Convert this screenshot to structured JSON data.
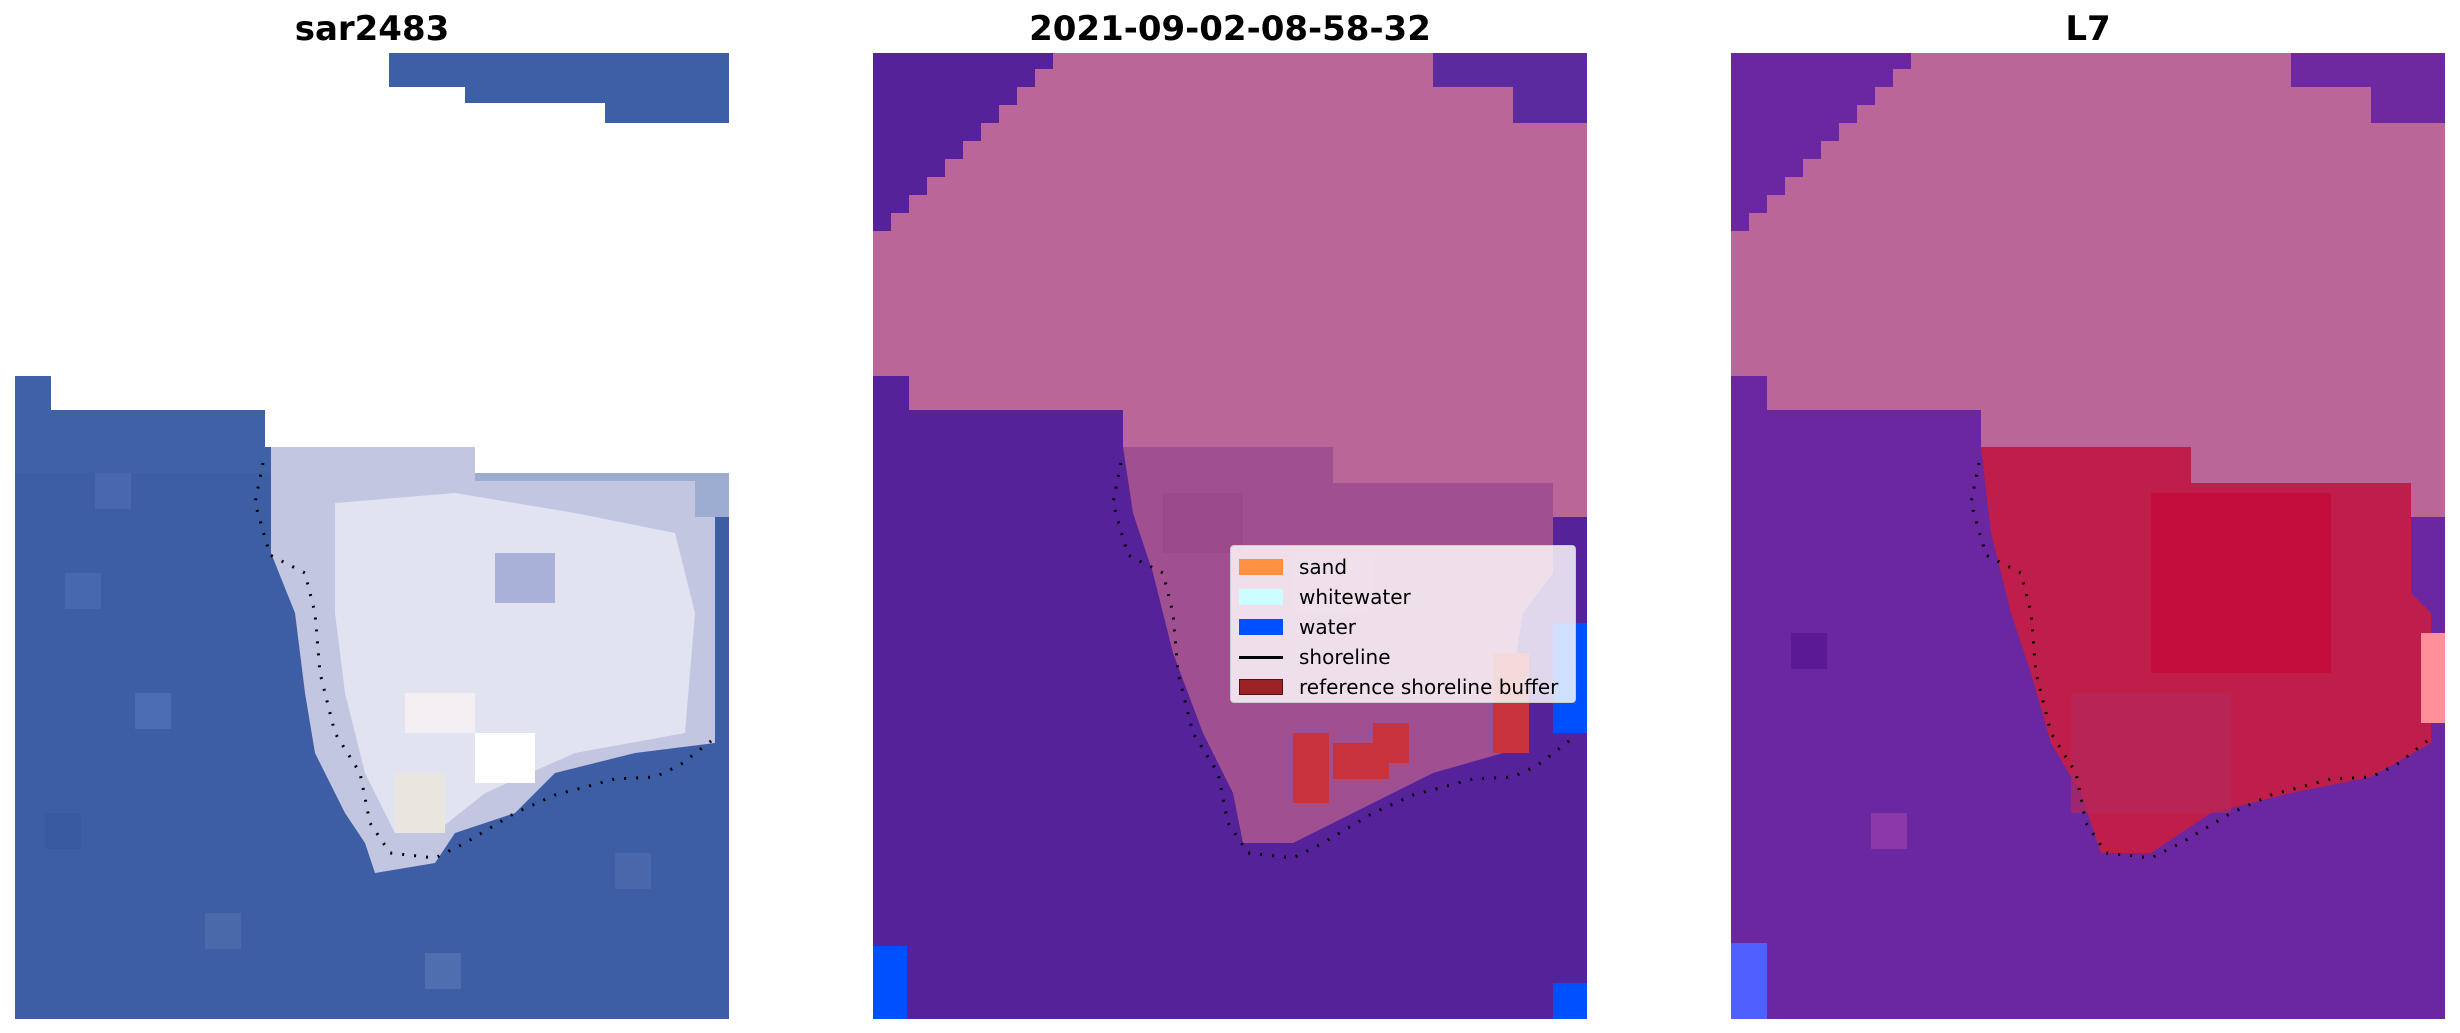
{
  "panels": [
    {
      "title": "sar2483"
    },
    {
      "title": "2021-09-02-08-58-32"
    },
    {
      "title": "L7"
    }
  ],
  "legend": {
    "items": [
      {
        "label": "sand",
        "color": "#ff9042",
        "kind": "patch"
      },
      {
        "label": "whitewater",
        "color": "#ccfdff",
        "kind": "patch"
      },
      {
        "label": "water",
        "color": "#0050ff",
        "kind": "patch"
      },
      {
        "label": "shoreline",
        "color": "#000000",
        "kind": "line"
      },
      {
        "label": "reference shoreline buffer",
        "color": "#9b2226",
        "kind": "patch"
      }
    ]
  },
  "colors": {
    "ocean_rgb": "#3d5fa5",
    "whitewater_rgb": "#e6e8f2",
    "mask_purple": "#55229a",
    "mask_pink": "#bb6699",
    "mask_red": "#cc0033",
    "mask_blue": "#0050ff",
    "shoreline": "#000000"
  }
}
